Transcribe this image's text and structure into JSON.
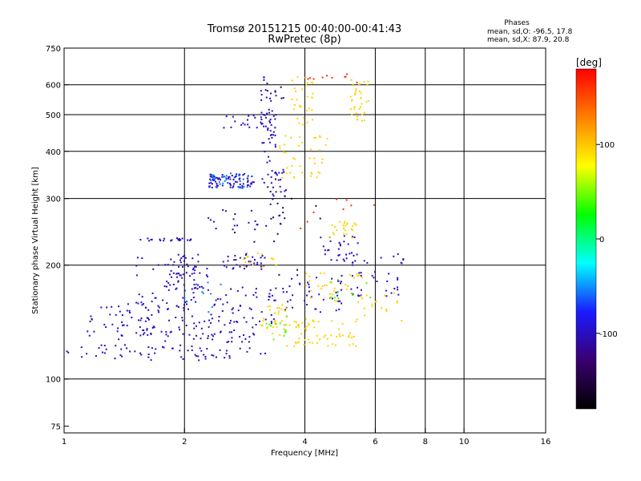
{
  "chart_data": {
    "type": "scatter",
    "title_lines": [
      "Tromsø 20151215 00:40:00-00:41:43",
      "RwPretec (8p)"
    ],
    "xlabel": "Frequency [MHz]",
    "ylabel": "Stationary phase Virtual Height [km]",
    "x_scale": "log",
    "y_scale": "log",
    "xlim": [
      1,
      16
    ],
    "ylim": [
      72,
      750
    ],
    "x_ticks": [
      1,
      2,
      4,
      6,
      8,
      10,
      16
    ],
    "y_ticks": [
      75,
      100,
      200,
      300,
      400,
      500,
      600,
      750
    ],
    "x_grid": [
      2,
      4,
      6,
      8,
      10
    ],
    "y_grid": [
      100,
      200,
      300,
      400,
      500,
      600
    ],
    "grid": true,
    "phase_stats": {
      "title": "Phases",
      "o_line": "mean, sd,O: -96.5, 17.8",
      "x_line": "mean, sd,X:  87.9, 20.8"
    },
    "colorbar": {
      "label": "[deg]",
      "range": [
        -180,
        180
      ],
      "ticks": [
        100,
        0,
        -100
      ],
      "colormap": [
        "#000000",
        "#3a0070",
        "#1a1aff",
        "#00ffff",
        "#00ff00",
        "#ffff00",
        "#ff8000",
        "#ff0000"
      ]
    },
    "series": [
      {
        "phase": -100,
        "segments": [
          {
            "x": [
              1.0,
              3.2
            ],
            "y": [
              112,
              122
            ],
            "n": 55
          },
          {
            "x": [
              1.15,
              2.5
            ],
            "y": [
              118,
              160
            ],
            "n": 70
          },
          {
            "x": [
              1.5,
              2.3
            ],
            "y": [
              150,
              210
            ],
            "n": 60
          },
          {
            "x": [
              1.8,
              2.2
            ],
            "y": [
              170,
              215
            ],
            "n": 40
          },
          {
            "x": [
              1.55,
              2.1
            ],
            "y": [
              232,
              236
            ],
            "n": 22
          },
          {
            "x": [
              2.05,
              3.1
            ],
            "y": [
              125,
              145
            ],
            "n": 45
          },
          {
            "x": [
              2.3,
              3.4
            ],
            "y": [
              140,
              175
            ],
            "n": 40
          },
          {
            "x": [
              2.5,
              3.2
            ],
            "y": [
              195,
              215
            ],
            "n": 35
          },
          {
            "x": [
              2.3,
              3.0
            ],
            "y": [
              320,
              350
            ],
            "n": 75
          },
          {
            "x": [
              2.5,
              3.2
            ],
            "y": [
              460,
              500
            ],
            "n": 20
          },
          {
            "x": [
              3.1,
              3.4
            ],
            "y": [
              330,
              640
            ],
            "n": 55
          },
          {
            "x": [
              3.3,
              3.7
            ],
            "y": [
              300,
              360
            ],
            "n": 20
          },
          {
            "x": [
              3.5,
              5.0
            ],
            "y": [
              150,
              190
            ],
            "n": 45
          },
          {
            "x": [
              4.3,
              5.5
            ],
            "y": [
              205,
              240
            ],
            "n": 30
          },
          {
            "x": [
              5.2,
              7.2
            ],
            "y": [
              165,
              215
            ],
            "n": 40
          },
          {
            "x": [
              2.2,
              3.5
            ],
            "y": [
              245,
              280
            ],
            "n": 20
          },
          {
            "x": [
              1.1,
              1.8
            ],
            "y": [
              130,
              150
            ],
            "n": 30
          }
        ]
      },
      {
        "phase": 95,
        "segments": [
          {
            "x": [
              3.1,
              3.6
            ],
            "y": [
              130,
              160
            ],
            "n": 30
          },
          {
            "x": [
              3.6,
              5.4
            ],
            "y": [
              122,
              145
            ],
            "n": 60
          },
          {
            "x": [
              3.4,
              4.6
            ],
            "y": [
              340,
              440
            ],
            "n": 40
          },
          {
            "x": [
              3.7,
              4.2
            ],
            "y": [
              470,
              640
            ],
            "n": 30
          },
          {
            "x": [
              5.2,
              5.8
            ],
            "y": [
              480,
              620
            ],
            "n": 35
          },
          {
            "x": [
              4.6,
              5.4
            ],
            "y": [
              235,
              262
            ],
            "n": 25
          },
          {
            "x": [
              4.0,
              5.6
            ],
            "y": [
              160,
              195
            ],
            "n": 30
          },
          {
            "x": [
              2.8,
              3.4
            ],
            "y": [
              195,
              215
            ],
            "n": 15
          },
          {
            "x": [
              5.4,
              7.0
            ],
            "y": [
              140,
              170
            ],
            "n": 20
          }
        ]
      },
      {
        "phase": 40,
        "segments": [
          {
            "x": [
              3.2,
              3.7
            ],
            "y": [
              125,
              150
            ],
            "n": 12
          },
          {
            "x": [
              4.5,
              6.0
            ],
            "y": [
              160,
              200
            ],
            "n": 10
          }
        ]
      },
      {
        "phase": -55,
        "segments": [
          {
            "x": [
              2.3,
              2.9
            ],
            "y": [
              320,
              350
            ],
            "n": 30
          },
          {
            "x": [
              2.0,
              2.6
            ],
            "y": [
              150,
              180
            ],
            "n": 10
          }
        ]
      },
      {
        "phase": 160,
        "segments": [
          {
            "x": [
              4.0,
              5.5
            ],
            "y": [
              600,
              640
            ],
            "n": 10
          },
          {
            "x": [
              3.8,
              6.0
            ],
            "y": [
              250,
              300
            ],
            "n": 8
          }
        ]
      },
      {
        "phase": -140,
        "segments": [
          {
            "x": [
              3.2,
              3.6
            ],
            "y": [
              240,
              600
            ],
            "n": 18
          },
          {
            "x": [
              2.5,
              4.5
            ],
            "y": [
              150,
              300
            ],
            "n": 12
          }
        ]
      }
    ]
  }
}
